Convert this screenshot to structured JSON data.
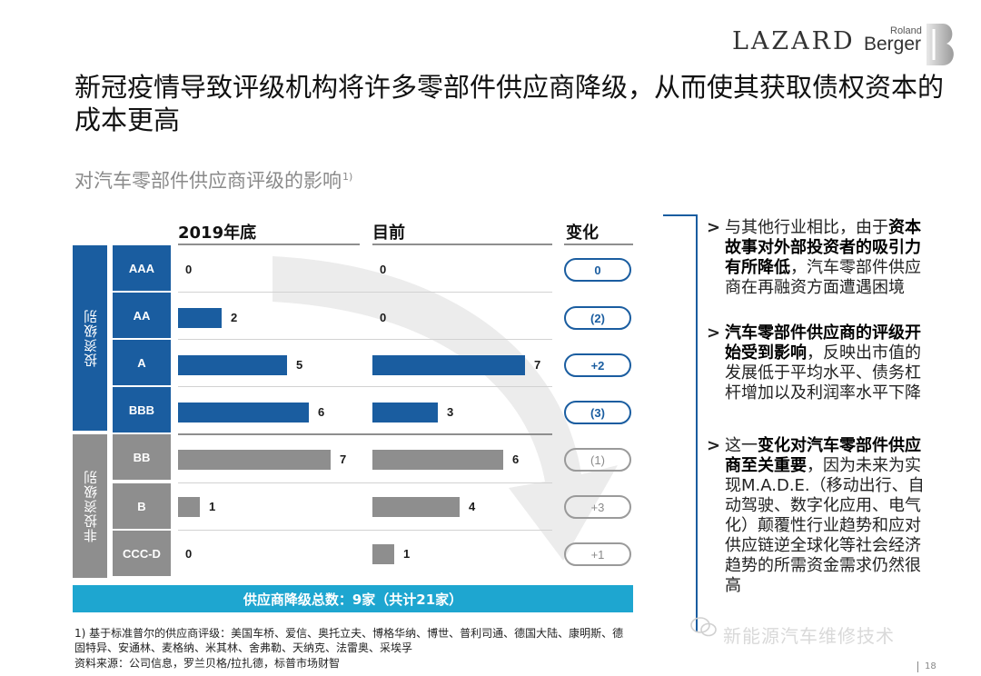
{
  "logos": {
    "lazard": "LAZARD",
    "roland": "Roland",
    "berger": "Berger"
  },
  "title": "新冠疫情导致评级机构将许多零部件供应商降级，从而使其获取债权资本的成本更高",
  "subtitle": {
    "text": "对汽车零部件供应商评级的影响",
    "sup": "1)"
  },
  "columns": {
    "end2019": "2019年底",
    "current": "目前",
    "change": "变化"
  },
  "groups": {
    "investment": "投资级别",
    "non_investment": "非投资级别"
  },
  "colors": {
    "blue": "#1a5da0",
    "grey": "#8e8e8e",
    "teal": "#1ea6d0"
  },
  "chart_data": {
    "type": "bar",
    "categories": [
      "AAA",
      "AA",
      "A",
      "BBB",
      "BB",
      "B",
      "CCC-D"
    ],
    "series": [
      {
        "name": "2019年底",
        "values": [
          0,
          2,
          5,
          6,
          7,
          1,
          0
        ]
      },
      {
        "name": "目前",
        "values": [
          0,
          0,
          7,
          3,
          6,
          4,
          1
        ]
      }
    ],
    "changes": [
      "0",
      "(2)",
      "+2",
      "(3)",
      "(1)",
      "+3",
      "+1"
    ],
    "value_labels_end2019": [
      "0",
      "2",
      "5",
      "6",
      "7",
      "1",
      "0"
    ],
    "value_labels_current": [
      "0",
      "0",
      "7",
      "3",
      "6",
      "4",
      "1"
    ],
    "xlim": [
      0,
      7
    ]
  },
  "total": "供应商降级总数：9家（共计21家）",
  "bullets": [
    {
      "marker": ">",
      "pre": "与其他行业相比，由于",
      "bold": "资本故事对外部投资者的吸引力有所降低",
      "post": "，汽车零部件供应商在再融资方面遭遇困境"
    },
    {
      "marker": ">",
      "pre": "",
      "bold": "汽车零部件供应商的评级开始受到影响",
      "post": "，反映出市值的发展低于平均水平、债务杠杆增加以及利润率水平下降"
    },
    {
      "marker": ">",
      "pre": "这一",
      "bold": "变化对汽车零部件供应商至关重要",
      "post": "，因为未来为实现M.A.D.E.（移动出行、自动驾驶、数字化应用、电气化）颠覆性行业趋势和应对供应链逆全球化等社会经济趋势的所需资金需求仍然很高"
    }
  ],
  "footnotes": {
    "line1": "1) 基于标准普尔的供应商评级：美国车桥、爱信、奥托立夫、博格华纳、博世、普利司通、德国大陆、康明斯、德",
    "line2": "固特异、安通林、麦格纳、米其林、舍弗勒、天纳克、法雷奥、采埃孚",
    "line3": "资料来源：公司信息，罗兰贝格/拉扎德，标普市场财智"
  },
  "watermark": "新能源汽车维修技术",
  "page_number": "18"
}
